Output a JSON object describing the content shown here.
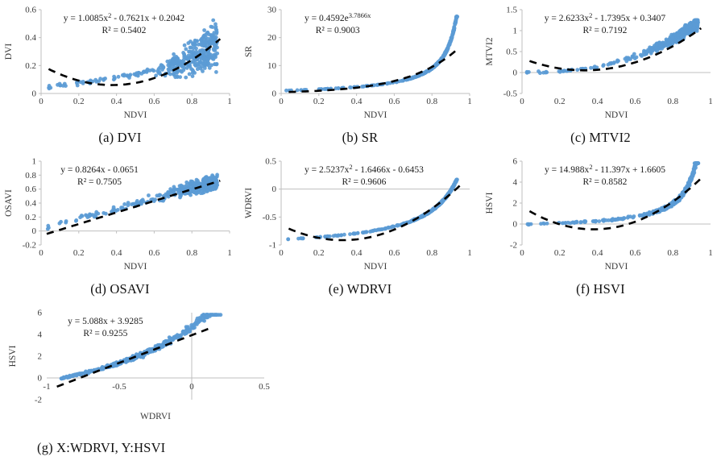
{
  "theme": {
    "point_color": "#5B9BD5",
    "trend_color": "#000000",
    "axis_color": "#BFBFBF",
    "text_color": "#1a1a1a"
  },
  "chart_data": [
    {
      "id": "a",
      "type": "scatter",
      "caption": "(a) DVI",
      "xlabel": "NDVI",
      "ylabel": "DVI",
      "xlim": [
        0,
        1
      ],
      "ylim": [
        0,
        0.6
      ],
      "xticks": [
        0,
        0.2,
        0.4,
        0.6,
        0.8,
        1
      ],
      "yticks": [
        0,
        0.2,
        0.4,
        0.6
      ],
      "equation": [
        {
          "t": "y = 1.0085x"
        },
        {
          "t": "2",
          "sup": true
        },
        {
          "t": " - 0.7621x + 0.2042"
        }
      ],
      "r2": "R² = 0.5402",
      "trend": {
        "type": "poly2",
        "coeffs": [
          1.0085,
          -0.7621,
          0.2042
        ],
        "range": [
          0.04,
          0.95
        ]
      },
      "model": "dvi",
      "seed": 11,
      "clip": [
        0.02,
        0.56
      ],
      "eq_cx": 0.44,
      "vline": "left",
      "xlabels_pos": "bottom",
      "xtick_marks": true
    },
    {
      "id": "b",
      "type": "scatter",
      "caption": "(b) SR",
      "xlabel": "NDVI",
      "ylabel": "SR",
      "xlim": [
        0,
        1
      ],
      "ylim": [
        0,
        30
      ],
      "xticks": [
        0,
        0.2,
        0.4,
        0.6,
        0.8,
        1
      ],
      "yticks": [
        0,
        10,
        20,
        30
      ],
      "equation": [
        {
          "t": "y = 0.4592e"
        },
        {
          "t": "3.7866x",
          "sup": true
        }
      ],
      "r2": "R² = 0.9003",
      "trend": {
        "type": "exp",
        "coeffs": [
          0.4592,
          3.7866
        ],
        "range": [
          0.04,
          0.93
        ]
      },
      "model": "sr",
      "seed": 12,
      "clip": [
        0.4,
        27.5
      ],
      "eq_cx": 0.3,
      "vline": "left",
      "xlabels_pos": "bottom",
      "xtick_marks": true
    },
    {
      "id": "c",
      "type": "scatter",
      "caption": "(c) MTVI2",
      "xlabel": "NDVI",
      "ylabel": "MTVI2",
      "xlim": [
        0,
        1
      ],
      "ylim": [
        -0.5,
        1.5
      ],
      "xticks": [
        0,
        0.2,
        0.4,
        0.6,
        0.8,
        1
      ],
      "yticks": [
        -0.5,
        0,
        0.5,
        1,
        1.5
      ],
      "equation": [
        {
          "t": "y = 2.6233x"
        },
        {
          "t": "2",
          "sup": true
        },
        {
          "t": " - 1.7395x + 0.3407"
        }
      ],
      "r2": "R² = 0.7192",
      "trend": {
        "type": "poly2",
        "coeffs": [
          2.6233,
          -1.7395,
          0.3407
        ],
        "range": [
          0.04,
          0.95
        ]
      },
      "model": "mtvi2",
      "seed": 13,
      "clip": [
        -0.05,
        1.25
      ],
      "eq_cx": 0.44,
      "vline": "left",
      "xlabels_pos": "bottom",
      "xtick_marks": false
    },
    {
      "id": "d",
      "type": "scatter",
      "caption": "(d) OSAVI",
      "xlabel": "NDVI",
      "ylabel": "OSAVI",
      "xlim": [
        0,
        1
      ],
      "ylim": [
        -0.2,
        1
      ],
      "xticks": [
        0,
        0.2,
        0.4,
        0.6,
        0.8,
        1
      ],
      "yticks": [
        -0.2,
        0,
        0.2,
        0.4,
        0.6,
        0.8,
        1
      ],
      "equation": [
        {
          "t": "y = 0.8264x - 0.0651"
        }
      ],
      "r2": "R² = 0.7505",
      "trend": {
        "type": "linear",
        "coeffs": [
          0.8264,
          -0.0651
        ],
        "range": [
          0.03,
          0.95
        ]
      },
      "model": "osavi",
      "seed": 14,
      "clip": [
        0.02,
        0.85
      ],
      "eq_cx": 0.31,
      "vline": "left",
      "xlabels_pos": "bottom",
      "xtick_marks": true
    },
    {
      "id": "e",
      "type": "scatter",
      "caption": "(e) WDRVI",
      "xlabel": "NDVI",
      "ylabel": "WDRVI",
      "xlim": [
        0,
        1
      ],
      "ylim": [
        -1,
        0.5
      ],
      "xticks": [
        0,
        0.2,
        0.4,
        0.6,
        0.8,
        1
      ],
      "yticks": [
        -1,
        -0.5,
        0,
        0.5
      ],
      "equation": [
        {
          "t": "y = 2.5237x"
        },
        {
          "t": "2",
          "sup": true
        },
        {
          "t": " - 1.6466x - 0.6453"
        }
      ],
      "r2": "R² = 0.9606",
      "trend": {
        "type": "poly2",
        "coeffs": [
          2.5237,
          -1.6466,
          -0.6453
        ],
        "range": [
          0.04,
          0.95
        ]
      },
      "model": "wdrvi",
      "seed": 15,
      "clip": [
        -0.92,
        0.17
      ],
      "eq_cx": 0.44,
      "vline": "left",
      "xlabels_pos": "bottom",
      "xtick_marks": false
    },
    {
      "id": "f",
      "type": "scatter",
      "caption": "(f) HSVI",
      "xlabel": "NDVI",
      "ylabel": "HSVI",
      "xlim": [
        0,
        1
      ],
      "ylim": [
        -2,
        6
      ],
      "xticks": [
        0,
        0.2,
        0.4,
        0.6,
        0.8,
        1
      ],
      "yticks": [
        -2,
        0,
        2,
        4,
        6
      ],
      "equation": [
        {
          "t": "y = 14.988x"
        },
        {
          "t": "2",
          "sup": true
        },
        {
          "t": " - 11.397x + 1.6605"
        }
      ],
      "r2": "R² = 0.8582",
      "trend": {
        "type": "poly2",
        "coeffs": [
          14.988,
          -11.397,
          1.6605
        ],
        "range": [
          0.04,
          0.95
        ]
      },
      "model": "hsvi",
      "seed": 16,
      "clip": [
        -0.15,
        5.8
      ],
      "eq_cx": 0.44,
      "vline": "left",
      "xlabels_pos": "bottom",
      "xtick_marks": false
    },
    {
      "id": "g",
      "type": "scatter",
      "caption": "(g)  X:WDRVI, Y:HSVI",
      "xlabel": "WDRVI",
      "ylabel": "HSVI",
      "xlim": [
        -1,
        0.5
      ],
      "ylim": [
        -2,
        6
      ],
      "xticks": [
        -1,
        -0.5,
        0,
        0.5
      ],
      "yticks": [
        -2,
        0,
        2,
        4,
        6
      ],
      "equation": [
        {
          "t": "y = 5.088x + 3.9285"
        }
      ],
      "r2": "R² = 0.9255",
      "trend": {
        "type": "linear",
        "coeffs": [
          5.088,
          3.9285
        ],
        "range": [
          -0.93,
          0.13
        ]
      },
      "model": "wdrvi_hsvi",
      "seed": 17,
      "clip": [
        -0.15,
        5.8
      ],
      "eq_cx": 0.27,
      "vline": "zero",
      "xlabels_pos": "axis",
      "xtick_marks": false
    }
  ]
}
